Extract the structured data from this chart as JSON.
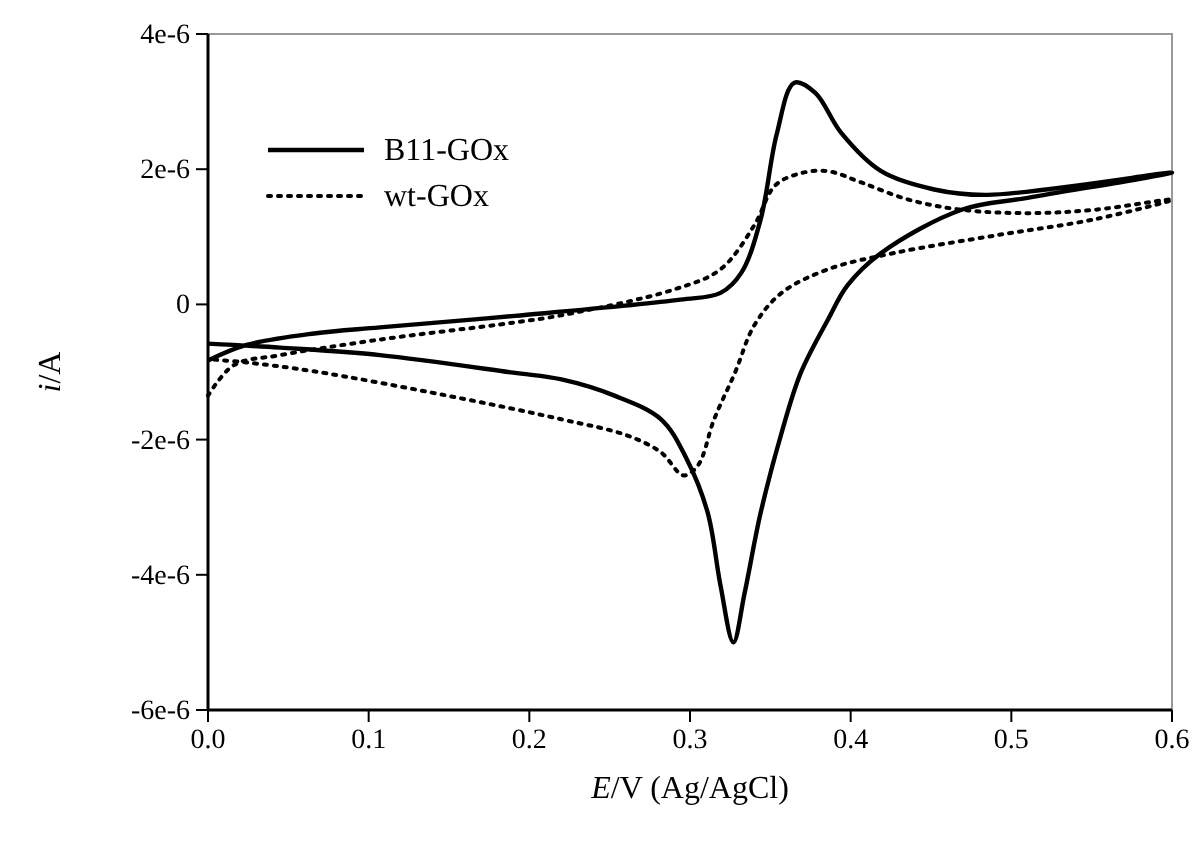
{
  "chart_data": {
    "type": "line",
    "xlabel": "E/V (Ag/AgCl)",
    "ylabel": "i/A",
    "xlim": [
      0,
      0.6
    ],
    "xticks": [
      {
        "value": 0,
        "label": "0.0"
      },
      {
        "value": 0.1,
        "label": "0.1"
      },
      {
        "value": 0.2,
        "label": "0.2"
      },
      {
        "value": 0.3,
        "label": "0.3"
      },
      {
        "value": 0.4,
        "label": "0.4"
      },
      {
        "value": 0.5,
        "label": "0.5"
      },
      {
        "value": 0.6,
        "label": "0.6"
      }
    ],
    "ylim": [
      -6e-06,
      4e-06
    ],
    "yticks": [
      {
        "value": -6e-06,
        "label": "-6e-6"
      },
      {
        "value": -4e-06,
        "label": "-4e-6"
      },
      {
        "value": -2e-06,
        "label": "-2e-6"
      },
      0,
      {
        "value": 2e-06,
        "label": "2e-6"
      },
      {
        "value": 4e-06,
        "label": "4e-6"
      }
    ],
    "legend": "top left",
    "grid": false,
    "marker": "none",
    "series": [
      {
        "name": "B11-GOx",
        "color": "#000000",
        "line_style": "solid",
        "x": [
          0,
          0.024,
          0.066,
          0.107,
          0.191,
          0.294,
          0.319,
          0.332,
          0.344,
          0.354,
          0.365,
          0.378,
          0.394,
          0.419,
          0.452,
          0.485,
          0.6,
          0.511,
          0.469,
          0.419,
          0.398,
          0.386,
          0.369,
          0.357,
          0.344,
          0.334,
          0.327,
          0.319,
          0.311,
          0.298,
          0.282,
          0.253,
          0.22,
          0.19,
          0.107,
          0.045,
          0
        ],
        "values": [
          -8.3e-07,
          -6e-07,
          -4.3e-07,
          -3.4e-07,
          -1.7e-07,
          7e-08,
          1.7e-07,
          4.7e-07,
          1.26e-06,
          2.52e-06,
          3.28e-06,
          3.13e-06,
          2.54e-06,
          1.97e-06,
          1.7e-06,
          1.62e-06,
          1.95e-06,
          1.58e-06,
          1.4e-06,
          7.6e-07,
          2.8e-07,
          -2.2e-07,
          -1.01e-06,
          -1.9e-06,
          -3.08e-06,
          -4.27e-06,
          -5e-06,
          -4.16e-06,
          -3.08e-06,
          -2.29e-06,
          -1.7e-06,
          -1.35e-06,
          -1.11e-06,
          -1.01e-06,
          -7.5e-07,
          -6.4e-07,
          -5.8e-07
        ]
      },
      {
        "name": "wt-GOx",
        "color": "#000000",
        "line_style": "dotted",
        "x": [
          0,
          0.016,
          0.045,
          0.107,
          0.19,
          0.22,
          0.29,
          0.319,
          0.34,
          0.353,
          0.369,
          0.386,
          0.407,
          0.436,
          0.469,
          0.511,
          0.552,
          0.6,
          0.552,
          0.49,
          0.427,
          0.386,
          0.357,
          0.34,
          0.328,
          0.315,
          0.305,
          0.296,
          0.282,
          0.261,
          0.22,
          0.149,
          0.066,
          0.024,
          0
        ],
        "values": [
          -1.35e-06,
          -9e-07,
          -7.5e-07,
          -5.2e-07,
          -2.7e-07,
          -1.6e-07,
          2.2e-07,
          5.2e-07,
          1.17e-06,
          1.76e-06,
          1.94e-06,
          1.97e-06,
          1.8e-06,
          1.55e-06,
          1.4e-06,
          1.35e-06,
          1.4e-06,
          1.55e-06,
          1.26e-06,
          1.02e-06,
          7.6e-07,
          5.2e-07,
          1.7e-07,
          -3.1e-07,
          -1.01e-06,
          -1.7e-06,
          -2.38e-06,
          -2.53e-06,
          -2.19e-06,
          -1.94e-06,
          -1.7e-06,
          -1.35e-06,
          -9.9e-07,
          -8.6e-07,
          -8.1e-07
        ]
      }
    ]
  }
}
